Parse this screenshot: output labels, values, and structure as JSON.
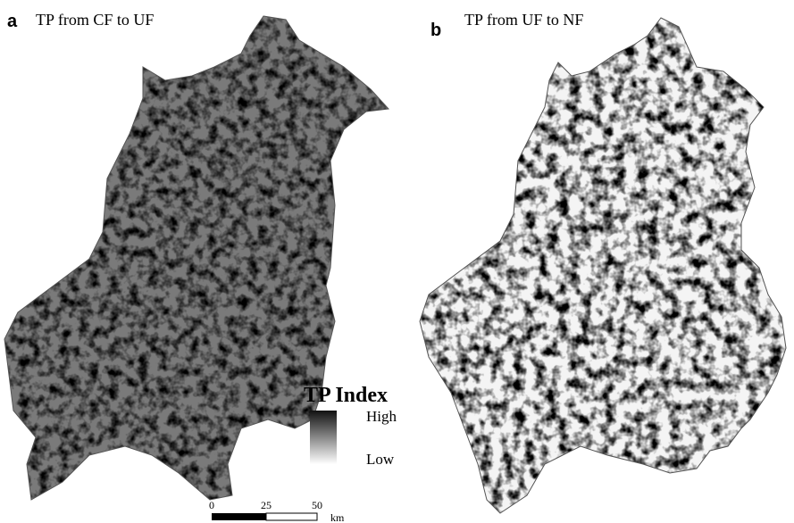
{
  "panels": [
    {
      "label": "a",
      "title": "TP from CF to UF"
    },
    {
      "label": "b",
      "title": "TP from UF to NF"
    }
  ],
  "legend": {
    "title": "TP Index",
    "high": "High",
    "low": "Low"
  },
  "scale_bar": {
    "ticks": [
      "0",
      "25",
      "50"
    ],
    "unit": "km"
  }
}
